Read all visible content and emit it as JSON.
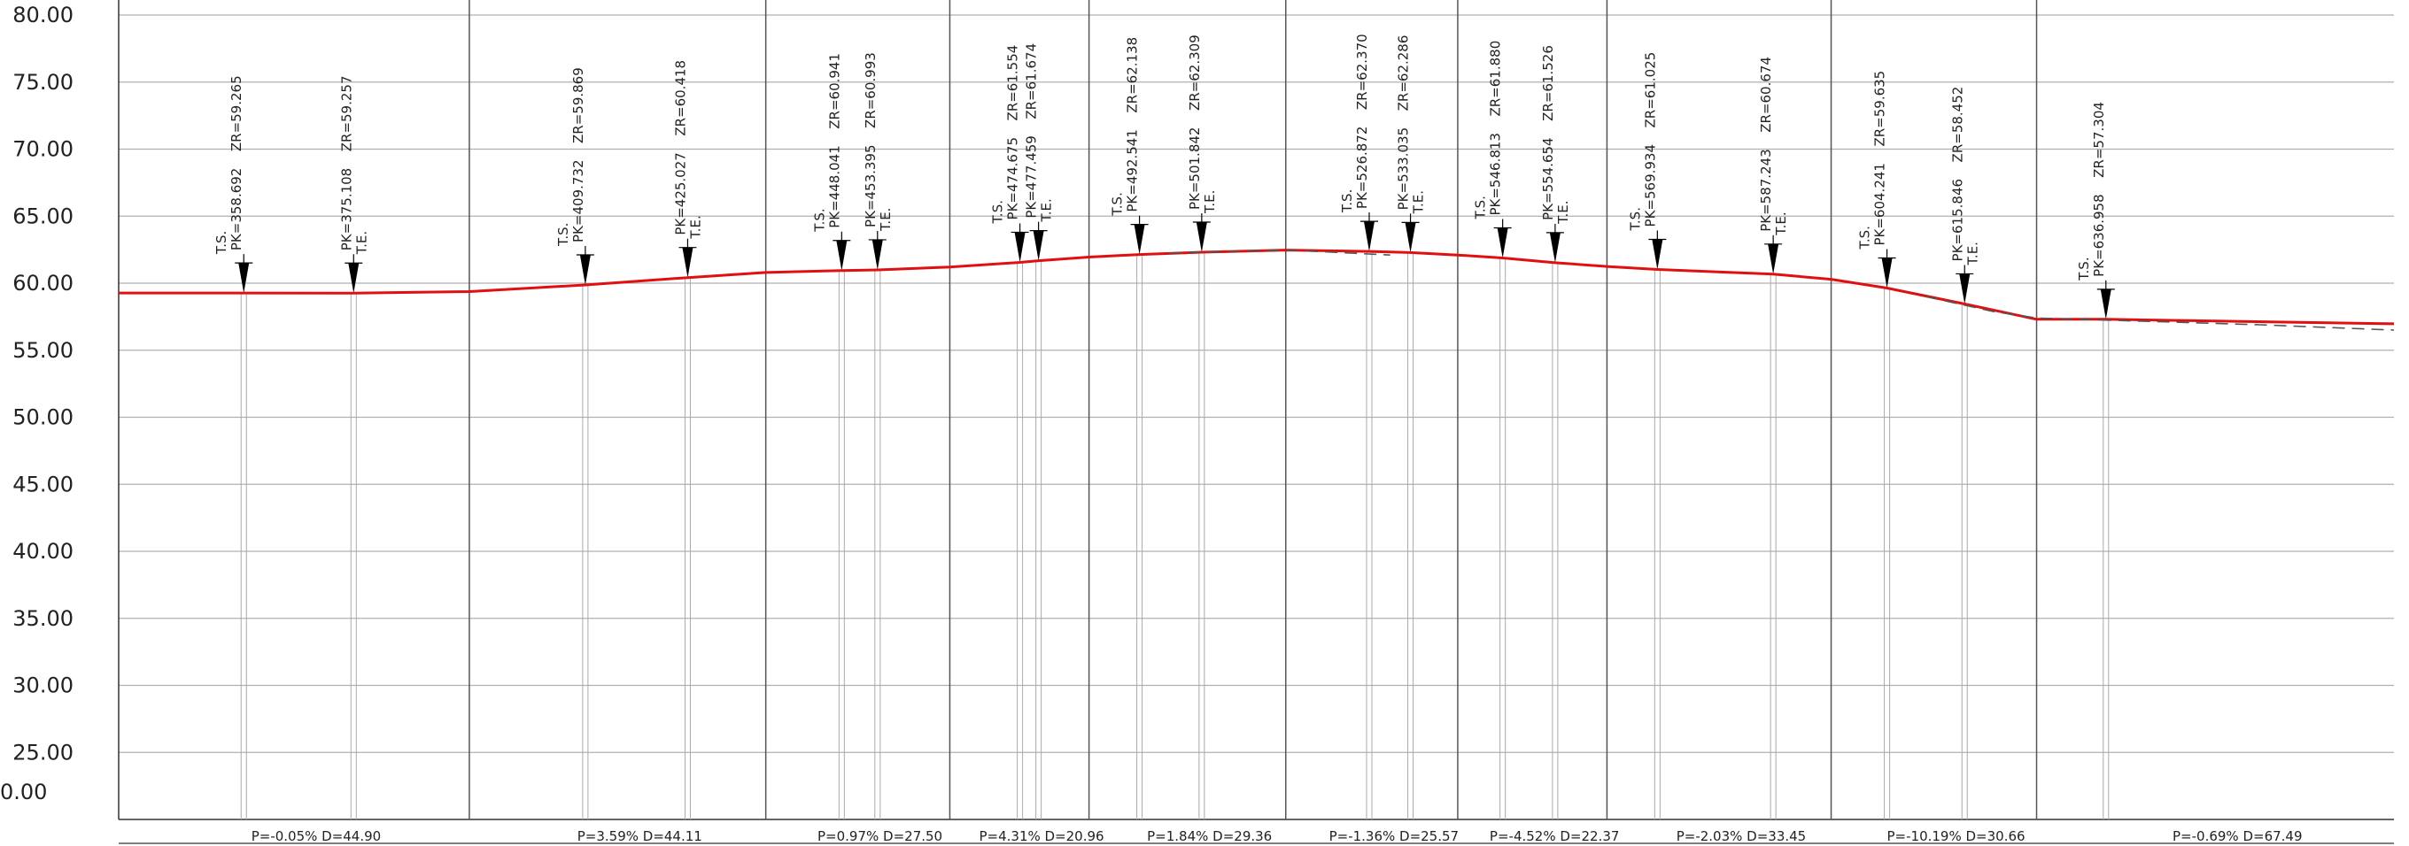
{
  "chart_data": {
    "type": "line",
    "xlim": [
      340,
      680
    ],
    "ylim": [
      20,
      80
    ],
    "yticks": [
      {
        "value": 80,
        "label": "80.00"
      },
      {
        "value": 75,
        "label": "75.00"
      },
      {
        "value": 70,
        "label": "70.00"
      },
      {
        "value": 65,
        "label": "65.00"
      },
      {
        "value": 60,
        "label": "60.00"
      },
      {
        "value": 55,
        "label": "55.00"
      },
      {
        "value": 50,
        "label": "50.00"
      },
      {
        "value": 45,
        "label": "45.00"
      },
      {
        "value": 40,
        "label": "40.00"
      },
      {
        "value": 35,
        "label": "35.00"
      },
      {
        "value": 30,
        "label": "30.00"
      },
      {
        "value": 25,
        "label": "25.00"
      }
    ],
    "bottom_label": "0.00",
    "grid": true,
    "series": [
      {
        "color": "#e01010",
        "x": [
          340,
          358.692,
          375.108,
          392.4,
          409.732,
          425.027,
          436.7,
          448.041,
          453.395,
          464.2,
          474.675,
          477.459,
          485.0,
          492.541,
          501.842,
          514.4,
          526.872,
          533.035,
          540.1,
          546.813,
          554.654,
          562.4,
          569.934,
          587.243,
          595.9,
          604.241,
          615.846,
          626.6,
          636.958,
          680
        ],
        "values": [
          59.27,
          59.265,
          59.257,
          59.37,
          59.869,
          60.418,
          60.8,
          60.941,
          60.993,
          61.2,
          61.554,
          61.674,
          61.95,
          62.138,
          62.309,
          62.47,
          62.37,
          62.286,
          62.1,
          61.88,
          61.526,
          61.25,
          61.025,
          60.674,
          60.29,
          59.635,
          58.452,
          57.31,
          57.304,
          56.97
        ]
      },
      {
        "color": "#555555",
        "dashed": true,
        "x": [
          497,
          505,
          514.4,
          522,
          530,
          null,
          610,
          620,
          626.6,
          640,
          660,
          680
        ],
        "values": [
          62.25,
          62.35,
          62.47,
          62.3,
          62.1,
          null,
          59.0,
          57.9,
          57.4,
          57.2,
          56.9,
          56.5
        ]
      }
    ],
    "breaks": [
      392.4,
      436.7,
      464.2,
      485.0,
      514.4,
      540.1,
      562.4,
      595.9,
      626.6
    ],
    "grade_labels": [
      "P=-0.05%  D=44.90",
      "P=3.59%  D=44.11",
      "P=0.97%  D=27.50",
      "P=4.31%  D=20.96",
      "P=1.84%  D=29.36",
      "P=-1.36%  D=25.57",
      "P=-4.52%  D=22.37",
      "P=-2.03%  D=33.45",
      "P=-10.19%  D=30.66",
      "P=-0.69%  D=67.49"
    ],
    "markers": [
      {
        "pk": 358.692,
        "pk_label": "PK=358.692",
        "zr": 59.265,
        "zr_label": "ZR=59.265",
        "note": "T.S."
      },
      {
        "pk": 375.108,
        "pk_label": "PK=375.108",
        "zr": 59.257,
        "zr_label": "ZR=59.257",
        "note": "T.E."
      },
      {
        "pk": 409.732,
        "pk_label": "PK=409.732",
        "zr": 59.869,
        "zr_label": "ZR=59.869",
        "note": "T.S."
      },
      {
        "pk": 425.027,
        "pk_label": "PK=425.027",
        "zr": 60.418,
        "zr_label": "ZR=60.418",
        "note": "T.E."
      },
      {
        "pk": 448.041,
        "pk_label": "PK=448.041",
        "zr": 60.941,
        "zr_label": "ZR=60.941",
        "note": "T.S."
      },
      {
        "pk": 453.395,
        "pk_label": "PK=453.395",
        "zr": 60.993,
        "zr_label": "ZR=60.993",
        "note": "T.E."
      },
      {
        "pk": 474.675,
        "pk_label": "PK=474.675",
        "zr": 61.554,
        "zr_label": "ZR=61.554",
        "note": "T.S."
      },
      {
        "pk": 477.459,
        "pk_label": "PK=477.459",
        "zr": 61.674,
        "zr_label": "ZR=61.674",
        "note": "T.E."
      },
      {
        "pk": 492.541,
        "pk_label": "PK=492.541",
        "zr": 62.138,
        "zr_label": "ZR=62.138",
        "note": "T.S."
      },
      {
        "pk": 501.842,
        "pk_label": "PK=501.842",
        "zr": 62.309,
        "zr_label": "ZR=62.309",
        "note": "T.E."
      },
      {
        "pk": 526.872,
        "pk_label": "PK=526.872",
        "zr": 62.37,
        "zr_label": "ZR=62.370",
        "note": "T.S."
      },
      {
        "pk": 533.035,
        "pk_label": "PK=533.035",
        "zr": 62.286,
        "zr_label": "ZR=62.286",
        "note": "T.E."
      },
      {
        "pk": 546.813,
        "pk_label": "PK=546.813",
        "zr": 61.88,
        "zr_label": "ZR=61.880",
        "note": "T.S."
      },
      {
        "pk": 554.654,
        "pk_label": "PK=554.654",
        "zr": 61.526,
        "zr_label": "ZR=61.526",
        "note": "T.E."
      },
      {
        "pk": 569.934,
        "pk_label": "PK=569.934",
        "zr": 61.025,
        "zr_label": "ZR=61.025",
        "note": "T.S."
      },
      {
        "pk": 587.243,
        "pk_label": "PK=587.243",
        "zr": 60.674,
        "zr_label": "ZR=60.674",
        "note": "T.E."
      },
      {
        "pk": 604.241,
        "pk_label": "PK=604.241",
        "zr": 59.635,
        "zr_label": "ZR=59.635",
        "note": "T.S."
      },
      {
        "pk": 615.846,
        "pk_label": "PK=615.846",
        "zr": 58.452,
        "zr_label": "ZR=58.452",
        "note": "T.E."
      },
      {
        "pk": 636.958,
        "pk_label": "PK=636.958",
        "zr": 57.304,
        "zr_label": "ZR=57.304",
        "note": "T.S."
      }
    ]
  }
}
